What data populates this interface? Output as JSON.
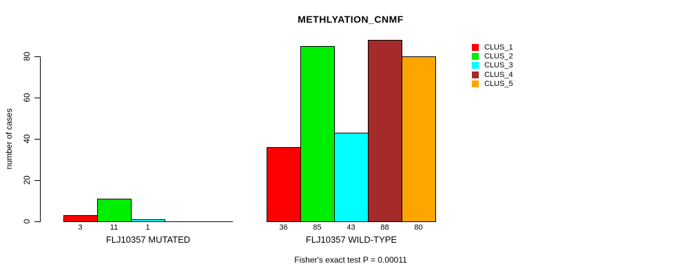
{
  "title": "METHLYATION_CNMF",
  "footer": "Fisher's exact test P = 0.00011",
  "chart_data": {
    "type": "bar",
    "title": "METHLYATION_CNMF",
    "xlabel": "",
    "ylabel": "number of cases",
    "ylim": [
      0,
      88
    ],
    "yticks": [
      0,
      20,
      40,
      60,
      80
    ],
    "grid": false,
    "legend_position": "top-right",
    "categories": [
      "FLJ10357 MUTATED",
      "FLJ10357 WILD-TYPE"
    ],
    "series": [
      {
        "name": "CLUS_1",
        "color": "#FF0000",
        "values": [
          3,
          36
        ]
      },
      {
        "name": "CLUS_2",
        "color": "#00EE00",
        "values": [
          11,
          85
        ]
      },
      {
        "name": "CLUS_3",
        "color": "#00FFFF",
        "values": [
          1,
          43
        ]
      },
      {
        "name": "CLUS_4",
        "color": "#A52A2A",
        "values": [
          0,
          88
        ]
      },
      {
        "name": "CLUS_5",
        "color": "#FFA500",
        "values": [
          0,
          80
        ]
      }
    ],
    "bar_value_labels": {
      "FLJ10357 MUTATED": [
        "3",
        "11",
        "1"
      ],
      "FLJ10357 WILD-TYPE": [
        "36",
        "85",
        "43",
        "88",
        "80"
      ]
    },
    "annotation": "Fisher's exact test P = 0.00011"
  }
}
